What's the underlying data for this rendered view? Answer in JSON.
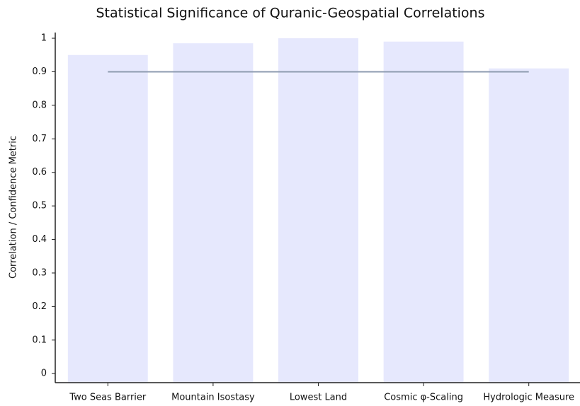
{
  "chart_data": {
    "type": "bar",
    "title": "Statistical Significance of Quranic-Geospatial Correlations",
    "y_label": "Correlation / Confidence Metric",
    "categories": [
      "Two Seas Barrier",
      "Mountain Isostasy",
      "Lowest Land",
      "Cosmic φ-Scaling",
      "Hydrologic Measure"
    ],
    "series": [
      {
        "type": "bar",
        "color": "#e6e8fd",
        "values": [
          0.95,
          0.985,
          1.0,
          0.99,
          0.91
        ]
      },
      {
        "type": "line",
        "color": "#8e9bb0",
        "values": [
          0.9,
          0.9,
          0.9,
          0.9,
          0.9
        ]
      }
    ],
    "ylim": [
      -0.027,
      1.017
    ],
    "yticks": [
      0,
      0.1,
      0.2,
      0.3,
      0.4,
      0.5,
      0.6,
      0.7,
      0.8,
      0.9,
      1
    ]
  }
}
